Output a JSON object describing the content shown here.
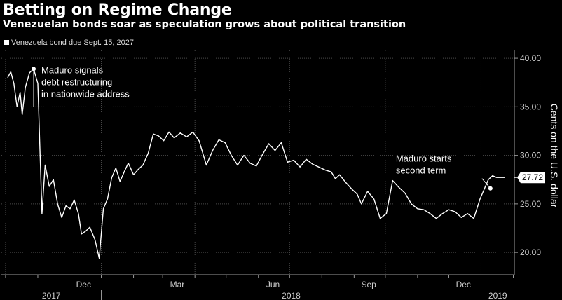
{
  "chart_data": {
    "type": "line",
    "title": "Betting on Regime Change",
    "subtitle": "Venezuelan bonds soar as speculation grows about political transition",
    "ylabel": "Cents on the U.S. dollar",
    "ylim": [
      17.7,
      40.8
    ],
    "yticks": [
      "20.00",
      "25.00",
      "30.00",
      "35.00",
      "40.00"
    ],
    "x_tick_labels": [
      "Dec",
      "Mar",
      "Jun",
      "Sep",
      "Dec"
    ],
    "x_period_labels": [
      "2017",
      "2018",
      "2019"
    ],
    "series": [
      {
        "name": "Venezuela bond due Sept. 15, 2027",
        "x": [
          "2017-10-03",
          "2017-10-06",
          "2017-10-09",
          "2017-10-12",
          "2017-10-15",
          "2017-10-17",
          "2017-10-20",
          "2017-10-24",
          "2017-10-28",
          "2017-11-01",
          "2017-11-05",
          "2017-11-08",
          "2017-11-12",
          "2017-11-16",
          "2017-11-20",
          "2017-11-24",
          "2017-11-28",
          "2017-12-02",
          "2017-12-06",
          "2017-12-10",
          "2017-12-13",
          "2017-12-17",
          "2017-12-21",
          "2017-12-26",
          "2017-12-30",
          "2018-01-03",
          "2018-01-07",
          "2018-01-11",
          "2018-01-15",
          "2018-01-19",
          "2018-01-23",
          "2018-01-27",
          "2018-02-01",
          "2018-02-05",
          "2018-02-10",
          "2018-02-15",
          "2018-02-20",
          "2018-02-25",
          "2018-03-02",
          "2018-03-07",
          "2018-03-12",
          "2018-03-18",
          "2018-03-24",
          "2018-03-30",
          "2018-04-05",
          "2018-04-12",
          "2018-04-18",
          "2018-04-24",
          "2018-04-30",
          "2018-05-06",
          "2018-05-12",
          "2018-05-18",
          "2018-05-24",
          "2018-05-30",
          "2018-06-05",
          "2018-06-11",
          "2018-06-17",
          "2018-06-23",
          "2018-06-29",
          "2018-07-05",
          "2018-07-11",
          "2018-07-17",
          "2018-07-23",
          "2018-07-29",
          "2018-08-04",
          "2018-08-10",
          "2018-08-14",
          "2018-08-18",
          "2018-08-24",
          "2018-08-30",
          "2018-09-04",
          "2018-09-08",
          "2018-09-14",
          "2018-09-20",
          "2018-09-26",
          "2018-10-02",
          "2018-10-08",
          "2018-10-14",
          "2018-10-20",
          "2018-10-26",
          "2018-11-01",
          "2018-11-07",
          "2018-11-13",
          "2018-11-19",
          "2018-11-25",
          "2018-12-01",
          "2018-12-07",
          "2018-12-13",
          "2018-12-19",
          "2018-12-25",
          "2018-12-31",
          "2019-01-04",
          "2019-01-08",
          "2019-01-12",
          "2019-01-16",
          "2019-01-20",
          "2019-01-24"
        ],
        "values": [
          38.0,
          38.6,
          37.4,
          35.0,
          36.5,
          34.2,
          37.0,
          38.5,
          38.9,
          37.4,
          24.0,
          29.0,
          26.8,
          27.5,
          25.0,
          23.6,
          24.8,
          24.5,
          25.4,
          24.0,
          21.9,
          22.2,
          22.6,
          21.3,
          19.4,
          24.5,
          25.5,
          27.7,
          28.7,
          27.3,
          28.3,
          29.2,
          28.0,
          28.5,
          29.0,
          30.2,
          32.2,
          32.0,
          31.5,
          32.4,
          31.8,
          32.3,
          31.9,
          32.4,
          31.5,
          29.0,
          30.5,
          31.6,
          31.3,
          30.0,
          29.0,
          30.0,
          29.2,
          28.9,
          30.1,
          31.2,
          30.5,
          31.3,
          29.3,
          29.5,
          28.8,
          29.6,
          29.1,
          28.8,
          28.5,
          28.3,
          27.6,
          28.0,
          27.2,
          26.5,
          26.0,
          25.0,
          26.3,
          25.5,
          23.5,
          24.0,
          27.4,
          26.7,
          26.1,
          25.0,
          24.5,
          24.4,
          24.0,
          23.5,
          24.0,
          24.4,
          24.2,
          23.6,
          24.0,
          23.5,
          25.5,
          26.5,
          27.5,
          27.9,
          27.72,
          27.72,
          27.72
        ]
      }
    ],
    "last_value_label": "27.72",
    "annotations": [
      {
        "lines": [
          "Maduro signals",
          "debt restructuring",
          "in nationwide address"
        ],
        "x": "2017-10-28",
        "y": 38.9
      },
      {
        "lines": [
          "Maduro starts",
          "second term"
        ],
        "x": "2019-01-10",
        "y": 26.6
      }
    ]
  }
}
